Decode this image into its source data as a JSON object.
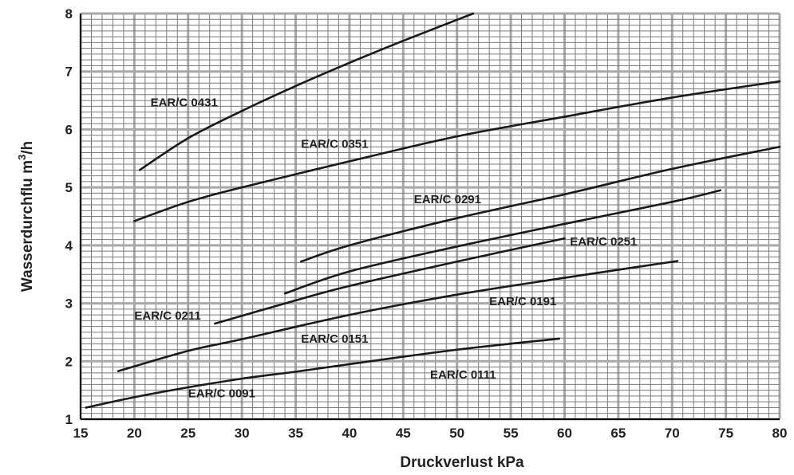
{
  "chart_data": {
    "type": "line",
    "xlabel": "Druckverlust kPa",
    "ylabel": "Wasserdurchflu m",
    "ylabel_sup": "3",
    "ylabel_suffix": "/h",
    "xlim": [
      15,
      80
    ],
    "ylim": [
      1,
      8
    ],
    "xticks": [
      15,
      20,
      25,
      30,
      35,
      40,
      45,
      50,
      55,
      60,
      65,
      70,
      75,
      80
    ],
    "yticks": [
      1,
      2,
      3,
      4,
      5,
      6,
      7,
      8
    ],
    "grid": true,
    "colors": {
      "curve": "#1a1a1a",
      "grid_minor": "#7a7a7a",
      "grid_major": "#a8a8a8",
      "axis": "#000000"
    },
    "series": [
      {
        "name": "EAR/C 0431",
        "x": [
          20.5,
          25,
          30,
          35,
          40,
          45,
          51.5
        ],
        "y": [
          5.3,
          5.85,
          6.32,
          6.75,
          7.15,
          7.53,
          8.0
        ]
      },
      {
        "name": "EAR/C 0351",
        "x": [
          20,
          25,
          30,
          40,
          50,
          60,
          70,
          80
        ],
        "y": [
          4.42,
          4.75,
          5.0,
          5.45,
          5.88,
          6.22,
          6.55,
          6.83
        ]
      },
      {
        "name": "EAR/C 0291",
        "x": [
          35.5,
          40,
          50,
          60,
          70,
          80
        ],
        "y": [
          3.72,
          4.0,
          4.47,
          4.88,
          5.32,
          5.7
        ]
      },
      {
        "name": "EAR/C 0251",
        "x": [
          34,
          40,
          50,
          60,
          70,
          74.5
        ],
        "y": [
          3.17,
          3.55,
          3.98,
          4.37,
          4.75,
          4.95
        ]
      },
      {
        "name": "EAR/C 0211",
        "x": [
          27.5,
          35,
          40,
          50,
          60
        ],
        "y": [
          2.65,
          3.05,
          3.3,
          3.72,
          4.12
        ]
      },
      {
        "name": "EAR/C 0191",
        "x": [
          18.5,
          25,
          30,
          40,
          50,
          60,
          70.5
        ],
        "y": [
          1.83,
          2.18,
          2.38,
          2.8,
          3.15,
          3.44,
          3.73
        ]
      },
      {
        "name": "EAR/C 0111",
        "x": [
          15.5,
          20,
          25,
          30,
          35,
          40,
          50,
          59.5
        ],
        "y": [
          1.2,
          1.38,
          1.55,
          1.7,
          1.82,
          1.95,
          2.2,
          2.39
        ]
      }
    ],
    "labels": [
      {
        "text": "EAR/C 0431",
        "x": 21.5,
        "y": 6.4
      },
      {
        "text": "EAR/C 0351",
        "x": 35.5,
        "y": 5.68
      },
      {
        "text": "EAR/C 0291",
        "x": 46,
        "y": 4.73
      },
      {
        "text": "EAR/C 0251",
        "x": 60.5,
        "y": 4.0
      },
      {
        "text": "EAR/C 0211",
        "x": 20,
        "y": 2.72
      },
      {
        "text": "EAR/C 0191",
        "x": 53,
        "y": 2.97
      },
      {
        "text": "EAR/C 0151",
        "x": 35.5,
        "y": 2.32
      },
      {
        "text": "EAR/C 0111",
        "x": 47.5,
        "y": 1.7
      },
      {
        "text": "EAR/C 0091",
        "x": 25,
        "y": 1.38
      }
    ]
  }
}
